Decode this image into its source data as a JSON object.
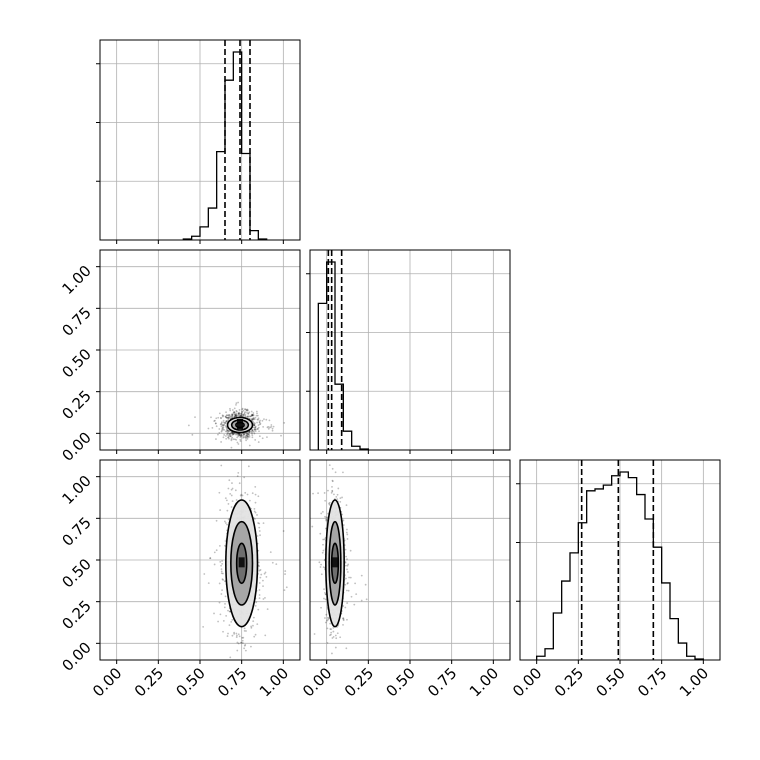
{
  "chart_data": {
    "type": "corner",
    "variables": 3,
    "tick_values": [
      0.0,
      0.25,
      0.5,
      0.75,
      1.0
    ],
    "tick_labels": [
      "0.00",
      "0.25",
      "0.50",
      "0.75",
      "1.00"
    ],
    "range": [
      -0.1,
      1.1
    ],
    "grid": true,
    "panels": [
      {
        "type": "bar",
        "row": 0,
        "col": 0,
        "bin_edges": [
          0.4,
          0.45,
          0.5,
          0.55,
          0.6,
          0.65,
          0.7,
          0.75,
          0.8,
          0.85,
          0.9
        ],
        "counts": [
          0.005,
          0.02,
          0.07,
          0.17,
          0.47,
          0.85,
          1.0,
          0.46,
          0.05,
          0.005
        ],
        "quantiles": [
          0.65,
          0.74,
          0.8
        ]
      },
      {
        "type": "scatter",
        "row": 1,
        "col": 0,
        "center": [
          0.74,
          0.05
        ],
        "spread": [
          0.05,
          0.04
        ],
        "contour_levels": [
          {
            "rx": 0.025,
            "ry": 0.015
          },
          {
            "rx": 0.05,
            "ry": 0.03
          },
          {
            "rx": 0.075,
            "ry": 0.045
          }
        ]
      },
      {
        "type": "bar",
        "row": 1,
        "col": 1,
        "bin_edges": [
          -0.05,
          0.0,
          0.05,
          0.1,
          0.15,
          0.2,
          0.25
        ],
        "counts": [
          0.78,
          1.0,
          0.35,
          0.1,
          0.02,
          0.005
        ],
        "quantiles": [
          0.01,
          0.03,
          0.09
        ]
      },
      {
        "type": "scatter",
        "row": 2,
        "col": 0,
        "center": [
          0.75,
          0.48
        ],
        "spread": [
          0.05,
          0.2
        ],
        "contour_levels": [
          {
            "rx": 0.03,
            "ry": 0.12
          },
          {
            "rx": 0.065,
            "ry": 0.25
          },
          {
            "rx": 0.095,
            "ry": 0.38
          }
        ]
      },
      {
        "type": "scatter",
        "row": 2,
        "col": 1,
        "center": [
          0.05,
          0.48
        ],
        "spread": [
          0.03,
          0.2
        ],
        "contour_levels": [
          {
            "rx": 0.02,
            "ry": 0.12
          },
          {
            "rx": 0.035,
            "ry": 0.25
          },
          {
            "rx": 0.055,
            "ry": 0.38
          }
        ]
      },
      {
        "type": "bar",
        "row": 2,
        "col": 2,
        "bin_edges": [
          0.0,
          0.05,
          0.1,
          0.15,
          0.2,
          0.25,
          0.3,
          0.35,
          0.4,
          0.45,
          0.5,
          0.55,
          0.6,
          0.65,
          0.7,
          0.75,
          0.8,
          0.85,
          0.9,
          0.95,
          1.0
        ],
        "counts": [
          0.02,
          0.06,
          0.25,
          0.42,
          0.57,
          0.73,
          0.9,
          0.91,
          0.93,
          0.98,
          1.0,
          0.97,
          0.88,
          0.75,
          0.6,
          0.41,
          0.22,
          0.09,
          0.02,
          0.005
        ],
        "quantiles": [
          0.27,
          0.49,
          0.7
        ]
      }
    ]
  }
}
